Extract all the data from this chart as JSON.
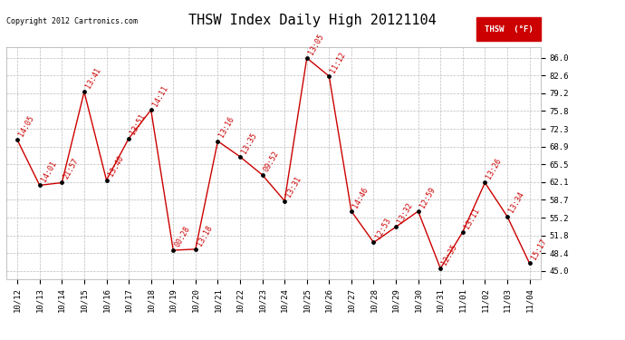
{
  "title": "THSW Index Daily High 20121104",
  "copyright": "Copyright 2012 Cartronics.com",
  "legend_label": "THSW  (°F)",
  "legend_bg": "#cc0000",
  "legend_text_color": "#ffffff",
  "background_color": "#ffffff",
  "line_color": "#cc0000",
  "marker_color": "#000000",
  "label_color": "#cc0000",
  "grid_color": "#bbbbbb",
  "dates": [
    "10/12",
    "10/13",
    "10/14",
    "10/15",
    "10/16",
    "10/17",
    "10/18",
    "10/19",
    "10/20",
    "10/21",
    "10/22",
    "10/23",
    "10/24",
    "10/25",
    "10/26",
    "10/27",
    "10/28",
    "10/29",
    "10/30",
    "10/31",
    "11/01",
    "11/02",
    "11/03",
    "11/04"
  ],
  "values": [
    70.2,
    61.5,
    62.0,
    79.5,
    62.5,
    70.5,
    76.0,
    49.0,
    49.2,
    70.0,
    67.0,
    63.5,
    58.5,
    86.0,
    82.5,
    56.5,
    50.5,
    53.5,
    56.5,
    45.5,
    52.5,
    62.0,
    55.5,
    46.5
  ],
  "time_labels": [
    "14:05",
    "14:01",
    "21:57",
    "13:41",
    "13:40",
    "13:51",
    "14:11",
    "00:28",
    "13:18",
    "13:16",
    "13:35",
    "09:52",
    "13:31",
    "13:05",
    "11:12",
    "14:46",
    "12:53",
    "13:32",
    "12:59",
    "12:35",
    "13:11",
    "13:26",
    "13:34",
    "15:17"
  ],
  "yticks": [
    45.0,
    48.4,
    51.8,
    55.2,
    58.7,
    62.1,
    65.5,
    68.9,
    72.3,
    75.8,
    79.2,
    82.6,
    86.0
  ],
  "ylim": [
    43.5,
    88.0
  ],
  "title_fontsize": 11,
  "label_fontsize": 6,
  "tick_fontsize": 6.5,
  "copyright_fontsize": 6
}
